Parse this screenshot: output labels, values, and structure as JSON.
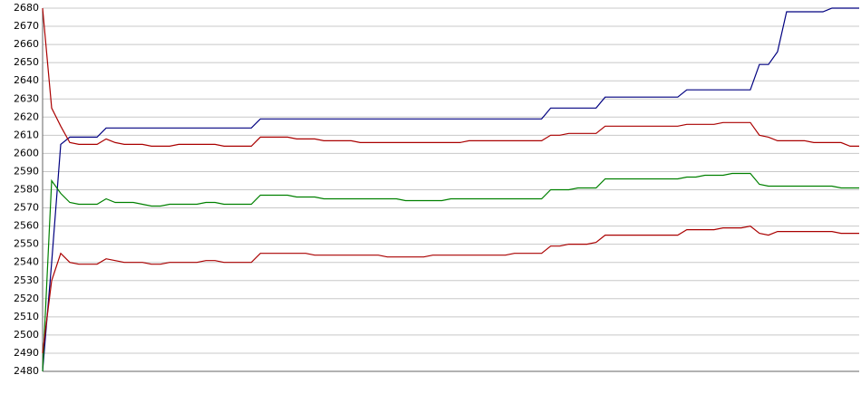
{
  "chart_data": {
    "type": "line",
    "categories": [
      null,
      null,
      null,
      null,
      null,
      null,
      null,
      null,
      null,
      null,
      null,
      null,
      null,
      null,
      null,
      null,
      null,
      null,
      null,
      null,
      null,
      null,
      null,
      null,
      null,
      null,
      null,
      null,
      null,
      null,
      null,
      null,
      null,
      null,
      null,
      null,
      null,
      null,
      null,
      null,
      null,
      null,
      null,
      null,
      null,
      null,
      null,
      null,
      null,
      null,
      null,
      null,
      null,
      null,
      null,
      null,
      null,
      null,
      null,
      null,
      null,
      null,
      null,
      null,
      null,
      null,
      null,
      null,
      null,
      null,
      null,
      null,
      null,
      null,
      null,
      null,
      null,
      null,
      null,
      null,
      null,
      null,
      null,
      null,
      null,
      null,
      null,
      null,
      null,
      null,
      null
    ],
    "series": [
      {
        "color": "#000080",
        "values": [
          2480,
          2540,
          2605,
          2609,
          2609,
          2609,
          2609,
          2614,
          2614,
          2614,
          2614,
          2614,
          2614,
          2614,
          2614,
          2614,
          2614,
          2614,
          2614,
          2614,
          2614,
          2614,
          2614,
          2614,
          2619,
          2619,
          2619,
          2619,
          2619,
          2619,
          2619,
          2619,
          2619,
          2619,
          2619,
          2619,
          2619,
          2619,
          2619,
          2619,
          2619,
          2619,
          2619,
          2619,
          2619,
          2619,
          2619,
          2619,
          2619,
          2619,
          2619,
          2619,
          2619,
          2619,
          2619,
          2619,
          2625,
          2625,
          2625,
          2625,
          2625,
          2625,
          2631,
          2631,
          2631,
          2631,
          2631,
          2631,
          2631,
          2631,
          2631,
          2635,
          2635,
          2635,
          2635,
          2635,
          2635,
          2635,
          2635,
          2649,
          2649,
          2656,
          2678,
          2678,
          2678,
          2678,
          2678,
          2680,
          2680,
          2680,
          2680
        ]
      },
      {
        "color": "#aa0000",
        "values": [
          2680,
          2625,
          2615,
          2606,
          2605,
          2605,
          2605,
          2608,
          2606,
          2605,
          2605,
          2605,
          2604,
          2604,
          2604,
          2605,
          2605,
          2605,
          2605,
          2605,
          2604,
          2604,
          2604,
          2604,
          2609,
          2609,
          2609,
          2609,
          2608,
          2608,
          2608,
          2607,
          2607,
          2607,
          2607,
          2606,
          2606,
          2606,
          2606,
          2606,
          2606,
          2606,
          2606,
          2606,
          2606,
          2606,
          2606,
          2607,
          2607,
          2607,
          2607,
          2607,
          2607,
          2607,
          2607,
          2607,
          2610,
          2610,
          2611,
          2611,
          2611,
          2611,
          2615,
          2615,
          2615,
          2615,
          2615,
          2615,
          2615,
          2615,
          2615,
          2616,
          2616,
          2616,
          2616,
          2617,
          2617,
          2617,
          2617,
          2610,
          2609,
          2607,
          2607,
          2607,
          2607,
          2606,
          2606,
          2606,
          2606,
          2604,
          2604
        ]
      },
      {
        "color": "#008000",
        "values": [
          2480,
          2585,
          2578,
          2573,
          2572,
          2572,
          2572,
          2575,
          2573,
          2573,
          2573,
          2572,
          2571,
          2571,
          2572,
          2572,
          2572,
          2572,
          2573,
          2573,
          2572,
          2572,
          2572,
          2572,
          2577,
          2577,
          2577,
          2577,
          2576,
          2576,
          2576,
          2575,
          2575,
          2575,
          2575,
          2575,
          2575,
          2575,
          2575,
          2575,
          2574,
          2574,
          2574,
          2574,
          2574,
          2575,
          2575,
          2575,
          2575,
          2575,
          2575,
          2575,
          2575,
          2575,
          2575,
          2575,
          2580,
          2580,
          2580,
          2581,
          2581,
          2581,
          2586,
          2586,
          2586,
          2586,
          2586,
          2586,
          2586,
          2586,
          2586,
          2587,
          2587,
          2588,
          2588,
          2588,
          2589,
          2589,
          2589,
          2583,
          2582,
          2582,
          2582,
          2582,
          2582,
          2582,
          2582,
          2582,
          2581,
          2581,
          2581
        ]
      },
      {
        "color": "#aa0000",
        "values": [
          2490,
          2530,
          2545,
          2540,
          2539,
          2539,
          2539,
          2542,
          2541,
          2540,
          2540,
          2540,
          2539,
          2539,
          2540,
          2540,
          2540,
          2540,
          2541,
          2541,
          2540,
          2540,
          2540,
          2540,
          2545,
          2545,
          2545,
          2545,
          2545,
          2545,
          2544,
          2544,
          2544,
          2544,
          2544,
          2544,
          2544,
          2544,
          2543,
          2543,
          2543,
          2543,
          2543,
          2544,
          2544,
          2544,
          2544,
          2544,
          2544,
          2544,
          2544,
          2544,
          2545,
          2545,
          2545,
          2545,
          2549,
          2549,
          2550,
          2550,
          2550,
          2551,
          2555,
          2555,
          2555,
          2555,
          2555,
          2555,
          2555,
          2555,
          2555,
          2558,
          2558,
          2558,
          2558,
          2559,
          2559,
          2559,
          2560,
          2556,
          2555,
          2557,
          2557,
          2557,
          2557,
          2557,
          2557,
          2557,
          2556,
          2556,
          2556
        ]
      }
    ],
    "ylim": [
      2480,
      2680
    ],
    "yticks": [
      2480,
      2490,
      2500,
      2510,
      2520,
      2530,
      2540,
      2550,
      2560,
      2570,
      2580,
      2590,
      2600,
      2610,
      2620,
      2630,
      2640,
      2650,
      2660,
      2670,
      2680
    ],
    "grid": true
  }
}
